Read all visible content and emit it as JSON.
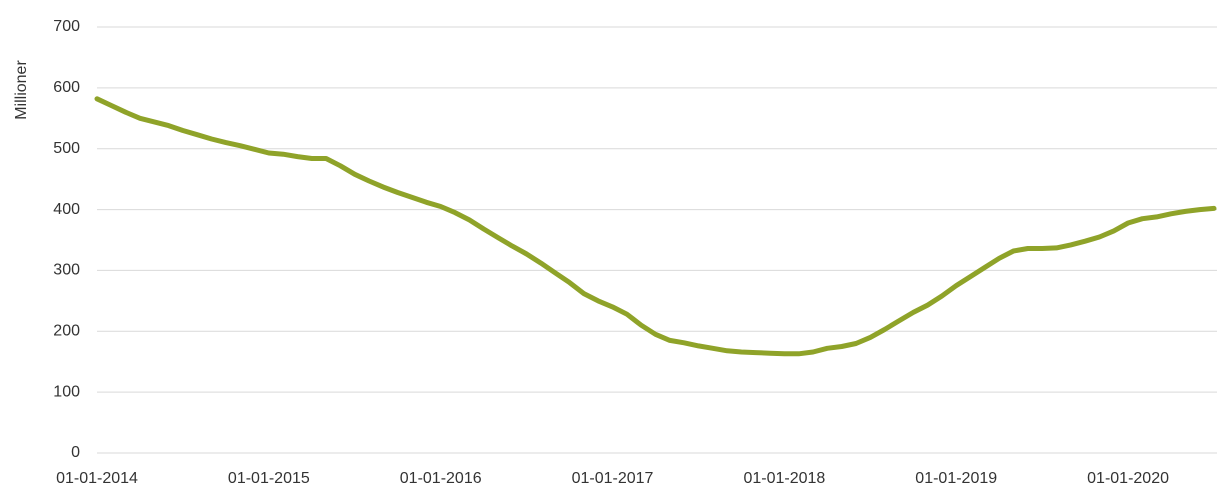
{
  "chart_data": {
    "type": "line",
    "y_label": "Millioner",
    "categories": [
      "01-01-2014",
      null,
      null,
      null,
      null,
      null,
      null,
      null,
      null,
      null,
      null,
      null,
      "01-01-2015",
      null,
      null,
      null,
      null,
      null,
      null,
      null,
      null,
      null,
      null,
      null,
      "01-01-2016",
      null,
      null,
      null,
      null,
      null,
      null,
      null,
      null,
      null,
      null,
      null,
      "01-01-2017",
      null,
      null,
      null,
      null,
      null,
      null,
      null,
      null,
      null,
      null,
      null,
      "01-01-2018",
      null,
      null,
      null,
      null,
      null,
      null,
      null,
      null,
      null,
      null,
      null,
      "01-01-2019",
      null,
      null,
      null,
      null,
      null,
      null,
      null,
      null,
      null,
      null,
      null,
      "01-01-2020",
      null,
      null,
      null,
      null,
      null,
      null
    ],
    "series": [
      {
        "color": "#8fa329",
        "values": [
          582,
          571,
          560,
          550,
          544,
          538,
          530,
          523,
          516,
          510,
          505,
          499,
          493,
          491,
          487,
          484,
          484,
          472,
          458,
          447,
          437,
          428,
          420,
          412,
          405,
          395,
          383,
          368,
          354,
          340,
          327,
          312,
          296,
          280,
          262,
          250,
          240,
          228,
          210,
          195,
          185,
          181,
          176,
          172,
          168,
          166,
          165,
          164,
          163,
          163,
          166,
          172,
          175,
          180,
          190,
          203,
          217,
          231,
          243,
          258,
          275,
          290,
          305,
          320,
          332,
          336,
          336,
          337,
          342,
          348,
          355,
          365,
          378,
          385,
          388,
          393,
          397,
          400,
          402
        ]
      }
    ],
    "ylim": [
      0,
      700
    ],
    "yticks": [
      0,
      100,
      200,
      300,
      400,
      500,
      600,
      700
    ],
    "grid": true
  }
}
